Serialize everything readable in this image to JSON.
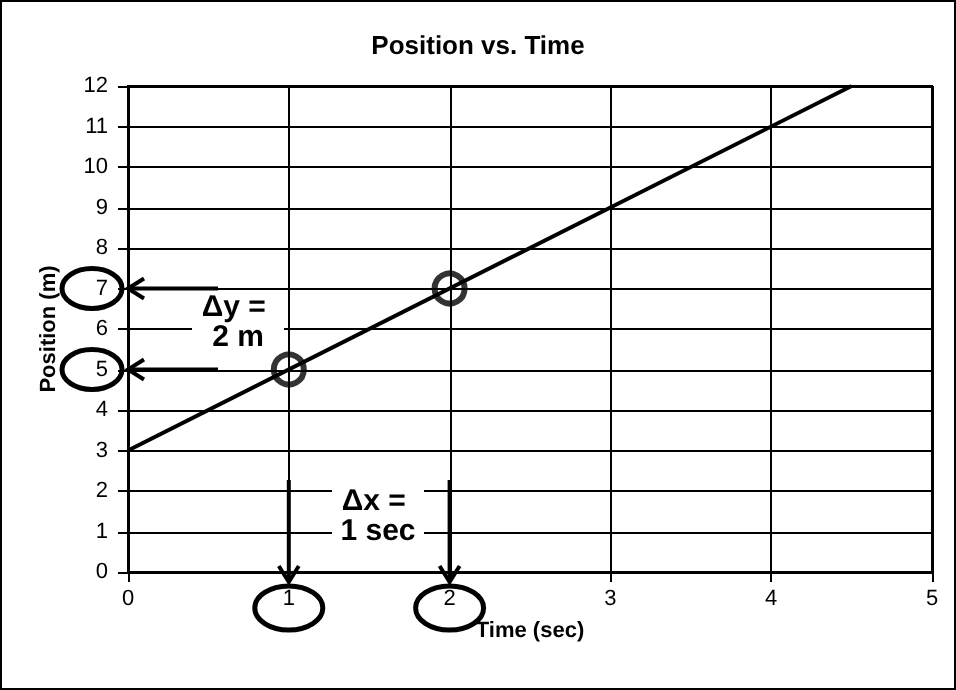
{
  "chart_data": {
    "type": "line",
    "title": "Position vs. Time",
    "xlabel": "Time (sec)",
    "ylabel": "Position (m)",
    "series": [
      {
        "color": "#000000",
        "x": [
          0,
          4.5
        ],
        "values": [
          3,
          12
        ],
        "marker": "none"
      },
      {
        "type": "scatter",
        "color": "#000000",
        "x": [
          1,
          2
        ],
        "values": [
          5,
          7
        ],
        "marker": "circle"
      }
    ],
    "xlim": [
      0,
      5
    ],
    "ylim": [
      0,
      12
    ],
    "xticks": [
      0,
      1,
      2,
      3,
      4,
      5
    ],
    "yticks": [
      0,
      1,
      2,
      3,
      4,
      5,
      6,
      7,
      8,
      9,
      10,
      11,
      12
    ],
    "grid": true,
    "annotations": [
      "Δy = 2 m",
      "Δx = 1 sec"
    ]
  }
}
